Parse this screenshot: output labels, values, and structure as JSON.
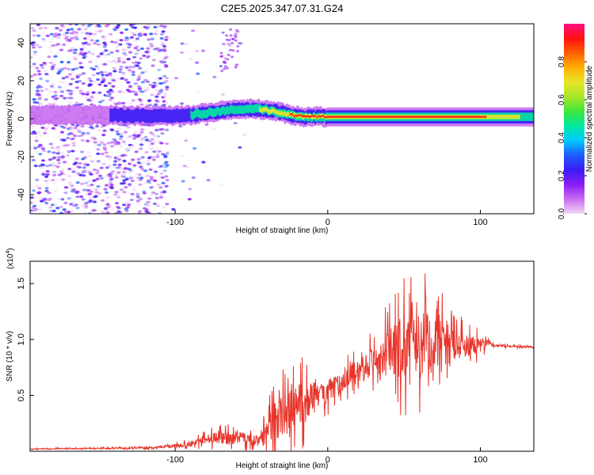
{
  "chart_data": [
    {
      "type": "heatmap",
      "title": "C2E5.2025.347.07.31.G24",
      "xlabel": "Height of straight line (km)",
      "ylabel": "Frequency (Hz)",
      "xlim": [
        -195,
        135
      ],
      "ylim": [
        -50,
        50
      ],
      "xticks": [
        -100,
        0,
        100
      ],
      "yticks": [
        -40,
        -20,
        0,
        20,
        40
      ],
      "colorbar": {
        "label": "Normalized spectral amplitude",
        "range": [
          0,
          1
        ],
        "ticks": [
          "0.0",
          "0.2",
          "0.4",
          "0.6",
          "0.8"
        ],
        "tick_values": [
          0,
          0.2,
          0.4,
          0.6,
          0.8
        ],
        "colors": [
          "#f2d9f7",
          "#c86df0",
          "#8a1cf5",
          "#3a1cf5",
          "#1f5cff",
          "#00c8ff",
          "#00e8a0",
          "#3de63d",
          "#a8e628",
          "#e6e628",
          "#ffb000",
          "#ff6000",
          "#ff1010",
          "#ff1080"
        ]
      },
      "ridge": {
        "description_points_x_km": [
          -195,
          -150,
          -110,
          -90,
          -70,
          -55,
          -45,
          -35,
          -25,
          -15,
          0,
          50,
          100,
          135
        ],
        "center_freq_hz": [
          2,
          2,
          1.5,
          2,
          4,
          5,
          5,
          4,
          2,
          1,
          1,
          1,
          1,
          1
        ],
        "peak_amplitude": [
          0.15,
          0.18,
          0.3,
          0.4,
          0.45,
          0.55,
          0.6,
          0.7,
          0.85,
          0.9,
          0.95,
          0.95,
          0.9,
          0.5
        ]
      },
      "noise_region_x_km": [
        -195,
        -105
      ]
    },
    {
      "type": "line",
      "xlabel": "Height of straight line (km)",
      "ylabel": "SNR (10 * v/v)",
      "y_multiplier_label": "(x10",
      "y_multiplier_exp": "4",
      "y_multiplier_close": ")",
      "xlim": [
        -195,
        135
      ],
      "ylim": [
        0,
        1.7
      ],
      "xticks": [
        -100,
        0,
        100
      ],
      "yticks": [
        "0.5",
        "1.0",
        "1.5"
      ],
      "ytick_values": [
        0.5,
        1.0,
        1.5
      ],
      "series": [
        {
          "name": "SNR",
          "color": "#e8342a",
          "envelope_x_km": [
            -195,
            -120,
            -90,
            -75,
            -60,
            -45,
            -35,
            -25,
            -15,
            -5,
            5,
            15,
            25,
            35,
            45,
            55,
            65,
            75,
            85,
            95,
            100,
            105,
            110,
            120,
            135
          ],
          "envelope_y": [
            0.02,
            0.03,
            0.06,
            0.12,
            0.12,
            0.1,
            0.25,
            0.4,
            0.45,
            0.5,
            0.58,
            0.68,
            0.78,
            0.85,
            0.9,
            0.95,
            0.98,
            1.0,
            0.95,
            0.95,
            0.95,
            0.97,
            0.95,
            0.94,
            0.93
          ],
          "spike_amplitude": [
            0.005,
            0.01,
            0.03,
            0.08,
            0.1,
            0.06,
            0.3,
            0.35,
            0.3,
            0.2,
            0.15,
            0.15,
            0.18,
            0.25,
            0.45,
            0.5,
            0.45,
            0.3,
            0.2,
            0.15,
            0.1,
            0.04,
            0.02,
            0.015,
            0.01
          ]
        }
      ]
    }
  ]
}
